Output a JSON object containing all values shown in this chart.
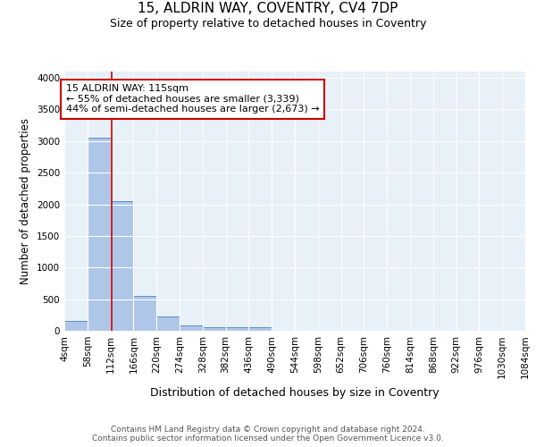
{
  "title1": "15, ALDRIN WAY, COVENTRY, CV4 7DP",
  "title2": "Size of property relative to detached houses in Coventry",
  "xlabel": "Distribution of detached houses by size in Coventry",
  "ylabel": "Number of detached properties",
  "bin_edges": [
    4,
    58,
    112,
    166,
    220,
    274,
    328,
    382,
    436,
    490,
    544,
    598,
    652,
    706,
    760,
    814,
    868,
    922,
    976,
    1030,
    1084
  ],
  "bar_heights": [
    150,
    3050,
    2050,
    550,
    220,
    80,
    55,
    50,
    50,
    0,
    0,
    0,
    0,
    0,
    0,
    0,
    0,
    0,
    0,
    0
  ],
  "bar_color": "#aec6e8",
  "bar_edge_color": "#5a8fc4",
  "property_size": 115,
  "red_line_color": "#cc0000",
  "annotation_line1": "15 ALDRIN WAY: 115sqm",
  "annotation_line2": "← 55% of detached houses are smaller (3,339)",
  "annotation_line3": "44% of semi-detached houses are larger (2,673) →",
  "annotation_box_color": "#ffffff",
  "annotation_border_color": "#cc0000",
  "ylim": [
    0,
    4100
  ],
  "yticks": [
    0,
    500,
    1000,
    1500,
    2000,
    2500,
    3000,
    3500,
    4000
  ],
  "background_color": "#e8f0f8",
  "fig_background_color": "#ffffff",
  "footer_text": "Contains HM Land Registry data © Crown copyright and database right 2024.\nContains public sector information licensed under the Open Government Licence v3.0.",
  "title1_fontsize": 11,
  "title2_fontsize": 9,
  "xlabel_fontsize": 9,
  "ylabel_fontsize": 8.5,
  "tick_fontsize": 7.5,
  "annotation_fontsize": 8,
  "footer_fontsize": 6.5
}
